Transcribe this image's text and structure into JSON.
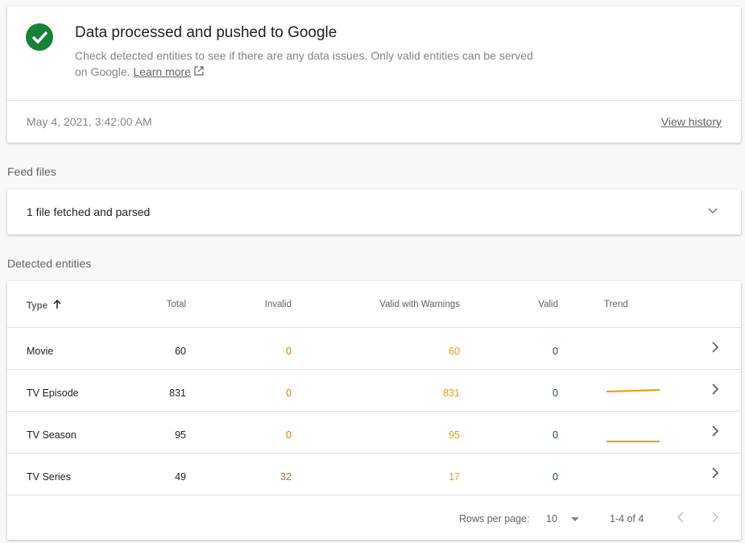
{
  "status": {
    "icon": "check-circle-icon",
    "title": "Data processed and pushed to Google",
    "description": "Check detected entities to see if there are any data issues. Only valid entities can be served on Google.",
    "learn_more": "Learn more",
    "date": "May 4, 2021, 3:42:00 AM",
    "view_history": "View history"
  },
  "feed": {
    "section_label": "Feed files",
    "summary": "1 file fetched and parsed"
  },
  "entities": {
    "section_label": "Detected entities",
    "columns": [
      "Type",
      "Total",
      "Invalid",
      "Valid with Warnings",
      "Valid",
      "Trend"
    ],
    "sort_icon": "arrow-up-icon",
    "rows": [
      {
        "type": "Movie",
        "total": "60",
        "invalid": "0",
        "warnings": "60",
        "valid": "0"
      },
      {
        "type": "TV Episode",
        "total": "831",
        "invalid": "0",
        "warnings": "831",
        "valid": "0"
      },
      {
        "type": "TV Season",
        "total": "95",
        "invalid": "0",
        "warnings": "95",
        "valid": "0"
      },
      {
        "type": "TV Series",
        "total": "49",
        "invalid": "32",
        "warnings": "17",
        "valid": "0"
      }
    ],
    "rows_per_page_label": "Rows per page:",
    "rows_per_page": "10",
    "range": "1-4 of 4"
  },
  "colors": {
    "green": "#188038",
    "orange": "#f29900"
  }
}
